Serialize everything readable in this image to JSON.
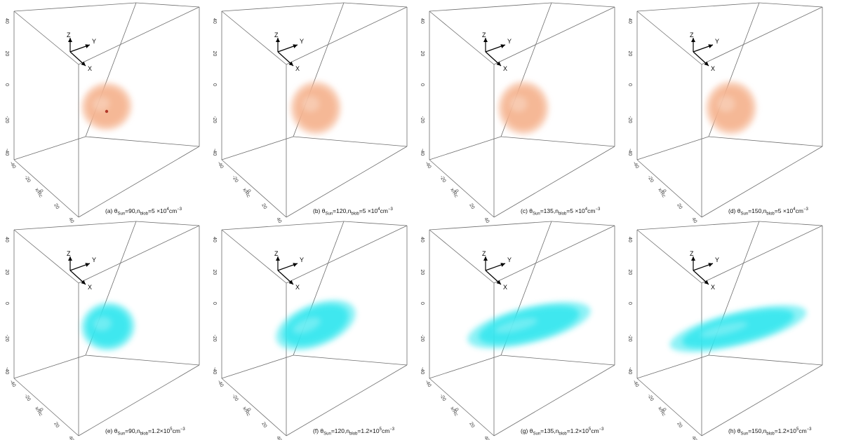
{
  "figure": {
    "colors": {
      "peach": "#f5b38f",
      "cyan": "#33e6ee",
      "frame": "#6d6d6d",
      "arrow": "#000000"
    },
    "axis_letters": {
      "z": "Z",
      "y": "Y",
      "x": "X"
    },
    "x_axis_label": "x/Rc",
    "z_ticks": [
      "40",
      "20",
      "0",
      "-20",
      "-40"
    ],
    "x_ticks": [
      "-40",
      "-20",
      "0",
      "20",
      "40"
    ],
    "panels": [
      {
        "id": "a",
        "color": "peach",
        "blob": "small-round",
        "theta": "90",
        "n_mant": "5",
        "n_exp": "4",
        "caption": {
          "letter": "(a) ",
          "theta_sym": "θ",
          "theta_sub": "Sun",
          "eq1": "=90,",
          "n_sym": "n",
          "n_sub": "blob",
          "eq2": "=5 ×10",
          "exp": "4",
          "unit": "cm",
          "unit_exp": "−3"
        }
      },
      {
        "id": "b",
        "color": "peach",
        "blob": "small-square",
        "theta": "120",
        "n_mant": "5",
        "n_exp": "4",
        "caption": {
          "letter": "(b) ",
          "theta_sym": "θ",
          "theta_sub": "Sun",
          "eq1": "=120,",
          "n_sym": "n",
          "n_sub": "blob",
          "eq2": "=5 ×10",
          "exp": "4",
          "unit": "cm",
          "unit_exp": "−3"
        }
      },
      {
        "id": "c",
        "color": "peach",
        "blob": "small-square",
        "theta": "135",
        "n_mant": "5",
        "n_exp": "4",
        "caption": {
          "letter": "(c) ",
          "theta_sym": "θ",
          "theta_sub": "Sun",
          "eq1": "=135,",
          "n_sym": "n",
          "n_sub": "blob",
          "eq2": "=5 ×10",
          "exp": "4",
          "unit": "cm",
          "unit_exp": "−3"
        }
      },
      {
        "id": "d",
        "color": "peach",
        "blob": "small-square",
        "theta": "150",
        "n_mant": "5",
        "n_exp": "4",
        "caption": {
          "letter": "(d) ",
          "theta_sym": "θ",
          "theta_sub": "Sun",
          "eq1": "=150,",
          "n_sym": "n",
          "n_sub": "blob",
          "eq2": "=5 ×10",
          "exp": "4",
          "unit": "cm",
          "unit_exp": "−3"
        }
      },
      {
        "id": "e",
        "color": "cyan",
        "blob": "round",
        "theta": "90",
        "n_mant": "1.2",
        "n_exp": "5",
        "caption": {
          "letter": "(e) ",
          "theta_sym": "θ",
          "theta_sub": "Sun",
          "eq1": "=90,",
          "n_sym": "n",
          "n_sub": "blob",
          "eq2": "=1.2×10",
          "exp": "5",
          "unit": "cm",
          "unit_exp": "−3"
        }
      },
      {
        "id": "f",
        "color": "cyan",
        "blob": "tilted",
        "theta": "120",
        "n_mant": "1.2",
        "n_exp": "5",
        "caption": {
          "letter": "(f) ",
          "theta_sym": "θ",
          "theta_sub": "Sun",
          "eq1": "=120,",
          "n_sym": "n",
          "n_sub": "blob",
          "eq2": "=1.2×10",
          "exp": "5",
          "unit": "cm",
          "unit_exp": "−3"
        }
      },
      {
        "id": "g",
        "color": "cyan",
        "blob": "wide",
        "theta": "135",
        "n_mant": "1.2",
        "n_exp": "5",
        "caption": {
          "letter": "(g) ",
          "theta_sym": "θ",
          "theta_sub": "Sun",
          "eq1": "=135,",
          "n_sym": "n",
          "n_sub": "blob",
          "eq2": "=1.2×10",
          "exp": "5",
          "unit": "cm",
          "unit_exp": "−3"
        }
      },
      {
        "id": "h",
        "color": "cyan",
        "blob": "wider",
        "theta": "150",
        "n_mant": "1.2",
        "n_exp": "5",
        "caption": {
          "letter": "(h) ",
          "theta_sym": "θ",
          "theta_sub": "Sun",
          "eq1": "=150,",
          "n_sym": "n",
          "n_sub": "blob",
          "eq2": "=1.2×10",
          "exp": "5",
          "unit": "cm",
          "unit_exp": "−3"
        }
      }
    ]
  }
}
